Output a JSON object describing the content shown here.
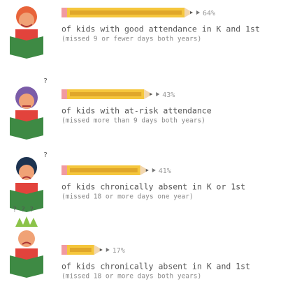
{
  "chart_data": {
    "type": "bar",
    "categories": [
      "of kids with good attendance in K and 1st",
      "of kids with at-risk attendance",
      "of kids chronically absent in K or 1st",
      "of kids chronically absent in K and 1st"
    ],
    "subtitles": [
      "(missed 9 or fewer days both years)",
      "(missed more than 9 days both years)",
      "(missed 18 or more days one year)",
      "(missed 18 or more days both years)"
    ],
    "values": [
      64,
      43,
      41,
      17
    ],
    "value_labels": [
      "64%",
      "43%",
      "41%",
      "17%"
    ],
    "color": "#f5c63c"
  }
}
